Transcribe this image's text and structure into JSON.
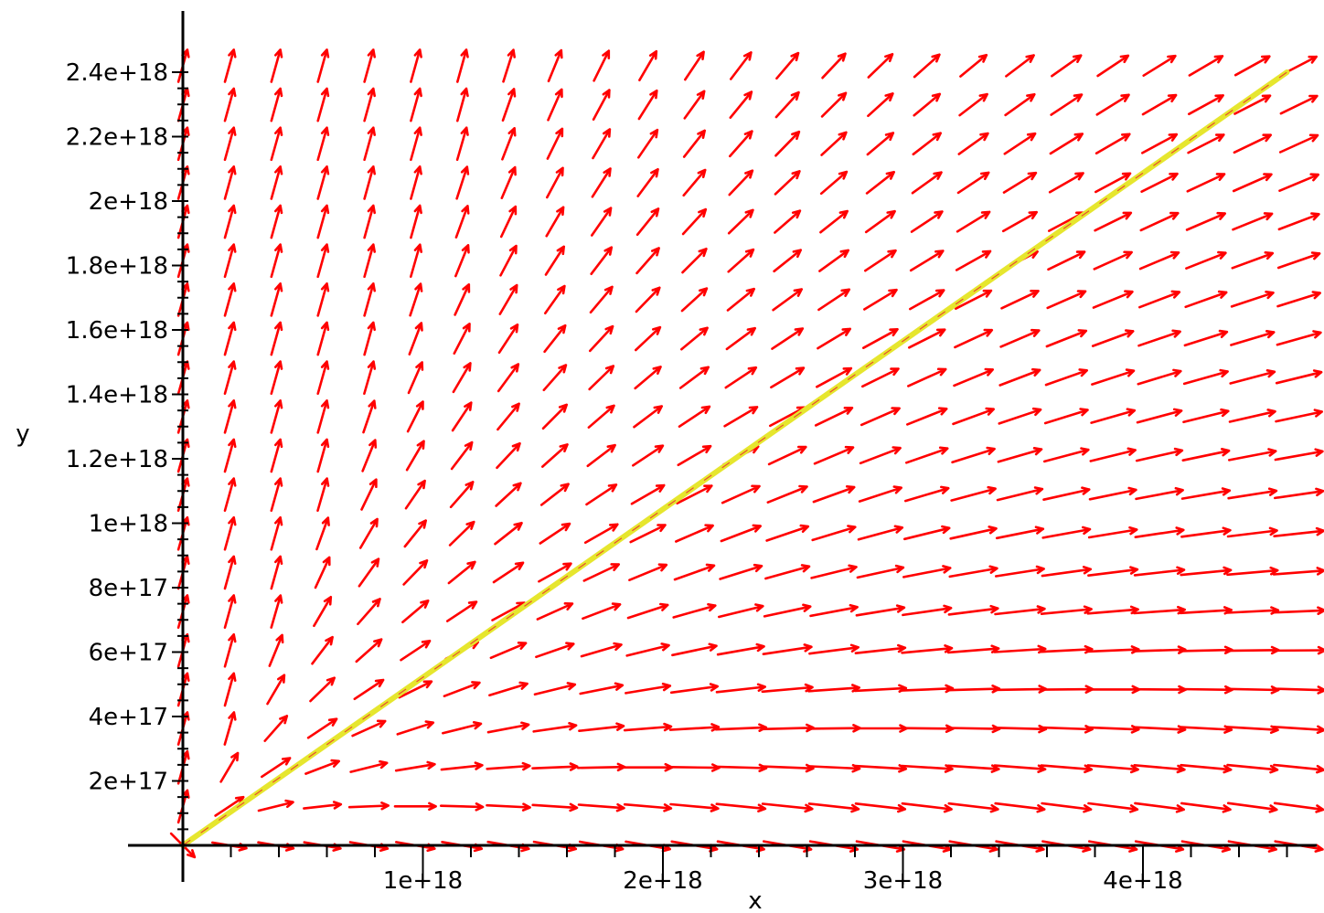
{
  "chart_data": {
    "type": "vector_field",
    "xlabel": "x",
    "ylabel": "y",
    "xlim": [
      0,
      4.7e+18
    ],
    "ylim": [
      0,
      2.45e+18
    ],
    "x_ticks": [
      {
        "value": 1e+18,
        "label": "1e+18"
      },
      {
        "value": 2e+18,
        "label": "2e+18"
      },
      {
        "value": 3e+18,
        "label": "3e+18"
      },
      {
        "value": 4e+18,
        "label": "4e+18"
      }
    ],
    "y_ticks": [
      {
        "value": 2e+17,
        "label": "2e+17"
      },
      {
        "value": 4e+17,
        "label": "4e+17"
      },
      {
        "value": 6e+17,
        "label": "6e+17"
      },
      {
        "value": 8e+17,
        "label": "8e+17"
      },
      {
        "value": 1e+18,
        "label": "1e+18"
      },
      {
        "value": 1.2e+18,
        "label": "1.2e+18"
      },
      {
        "value": 1.4e+18,
        "label": "1.4e+18"
      },
      {
        "value": 1.6e+18,
        "label": "1.6e+18"
      },
      {
        "value": 1.8e+18,
        "label": "1.8e+18"
      },
      {
        "value": 2e+18,
        "label": "2e+18"
      },
      {
        "value": 2.2e+18,
        "label": "2.2e+18"
      },
      {
        "value": 2.4e+18,
        "label": "2.4e+18"
      }
    ],
    "field": {
      "x_range": [
        0,
        4.65e+18
      ],
      "y_range": [
        0,
        2.42e+18
      ],
      "columns": 25,
      "rows": 21,
      "color": "#ff0000"
    },
    "curve": {
      "points": [
        [
          0,
          0
        ],
        [
          4.6e+18,
          2.4e+18
        ]
      ],
      "color": "#e6e62e"
    }
  }
}
